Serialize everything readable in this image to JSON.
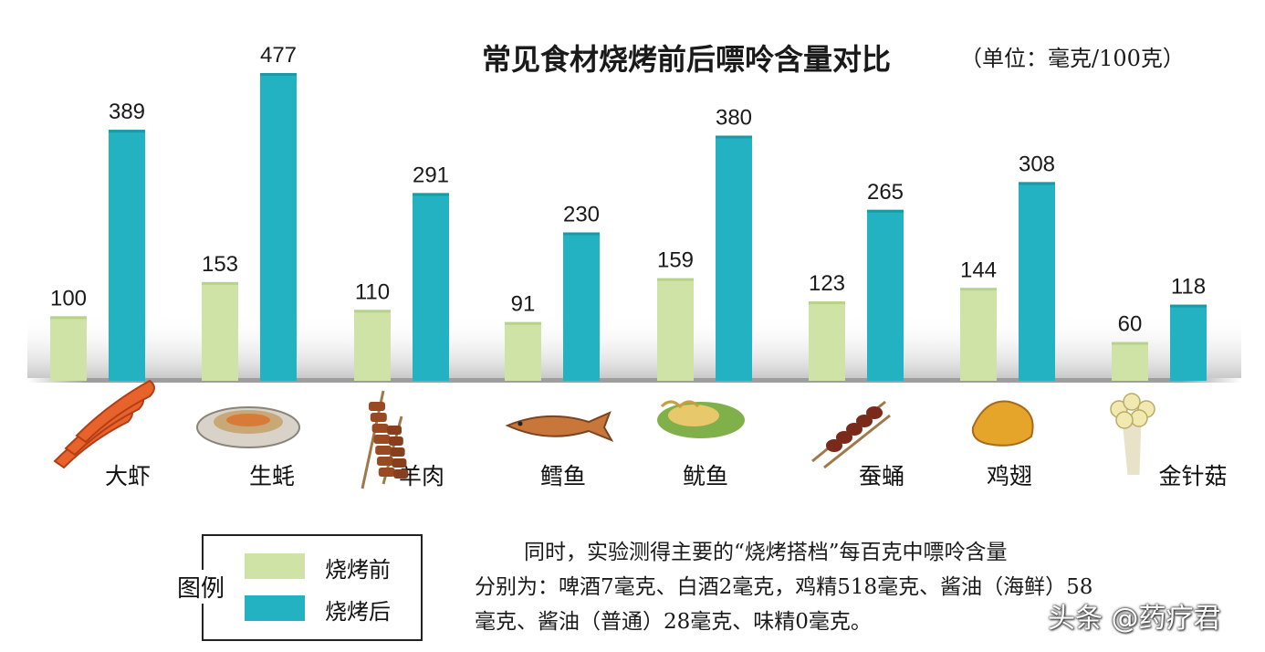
{
  "chart_data": {
    "type": "bar",
    "title": "常见食材烧烤前后嘌呤含量对比",
    "unit_note": "（单位：毫克/100克）",
    "categories": [
      "大虾",
      "生蚝",
      "羊肉",
      "鳕鱼",
      "鱿鱼",
      "蚕蛹",
      "鸡翅",
      "金针菇"
    ],
    "series": [
      {
        "name": "烧烤前",
        "color": "#cfe3a6",
        "values": [
          100,
          153,
          110,
          91,
          159,
          123,
          144,
          60
        ]
      },
      {
        "name": "烧烤后",
        "color": "#22b2c1",
        "values": [
          389,
          477,
          291,
          230,
          380,
          265,
          308,
          118
        ]
      }
    ],
    "ylim": [
      0,
      500
    ],
    "grid": false,
    "legend": {
      "title": "图例",
      "placement": "bottom-left"
    }
  },
  "icons": [
    "shrimp-icon",
    "oyster-icon",
    "lamb-skewer-icon",
    "cod-fish-icon",
    "squid-icon",
    "silkworm-pupa-skewer-icon",
    "chicken-wing-icon",
    "enoki-mushroom-icon"
  ],
  "note": {
    "line1": "同时，实验测得主要的“烧烤搭档”每百克中嘌呤含量",
    "line2": "分别为：啤酒7毫克、白酒2毫克，鸡精518毫克、酱油（海鲜）58",
    "line3": "毫克、酱油（普通）28毫克、味精0毫克。"
  },
  "watermark": "头条 @药疗君"
}
